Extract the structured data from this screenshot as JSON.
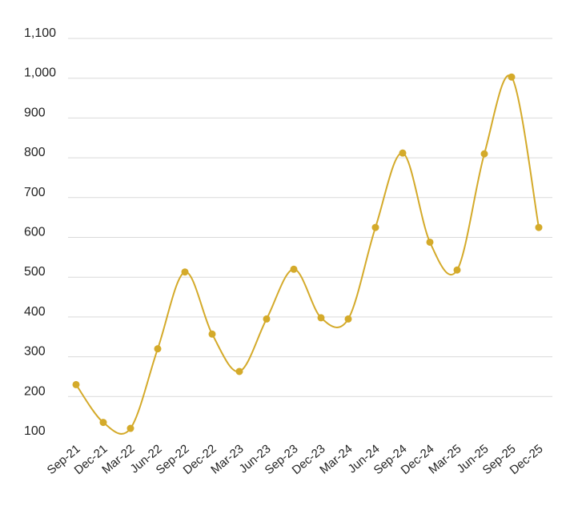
{
  "chart_data": {
    "type": "line",
    "title": "",
    "xlabel": "",
    "ylabel": "",
    "categories": [
      "Sep-21",
      "Dec-21",
      "Mar-22",
      "Jun-22",
      "Sep-22",
      "Dec-22",
      "Mar-23",
      "Jun-23",
      "Sep-23",
      "Dec-23",
      "Mar-24",
      "Jun-24",
      "Sep-24",
      "Dec-24",
      "Mar-25",
      "Jun-25",
      "Sep-25",
      "Dec-25"
    ],
    "series": [
      {
        "values": [
          230,
          135,
          120,
          320,
          513,
          357,
          263,
          395,
          520,
          398,
          395,
          625,
          812,
          588,
          518,
          810,
          1003,
          625
        ],
        "color": "#d4aa2a"
      }
    ],
    "yticks": [
      "100",
      "200",
      "300",
      "400",
      "500",
      "600",
      "700",
      "800",
      "900",
      "1,000",
      "1,100"
    ],
    "ytick_values": [
      100,
      200,
      300,
      400,
      500,
      600,
      700,
      800,
      900,
      1000,
      1100
    ],
    "ylim": [
      100,
      1100
    ],
    "grid": true,
    "legend": "none",
    "smooth": true
  }
}
